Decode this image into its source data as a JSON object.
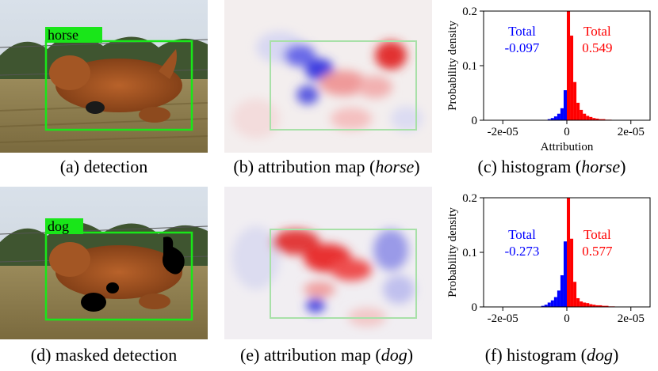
{
  "panels": [
    {
      "caption_pre": "(a) detection",
      "caption_em": "",
      "caption_post": "",
      "label": "horse"
    },
    {
      "caption_pre": "(b) attribution map (",
      "caption_em": "horse",
      "caption_post": ")"
    },
    {
      "caption_pre": "(c) histogram (",
      "caption_em": "horse",
      "caption_post": ")"
    },
    {
      "caption_pre": "(d) masked detection",
      "caption_em": "",
      "caption_post": "",
      "label": "dog"
    },
    {
      "caption_pre": "(e) attribution map (",
      "caption_em": "dog",
      "caption_post": ")"
    },
    {
      "caption_pre": "(f) histogram (",
      "caption_em": "dog",
      "caption_post": ")"
    }
  ],
  "colors": {
    "negative": "#0000ff",
    "positive": "#ff0000",
    "box": "#19e619",
    "label_bg": "#19e619"
  },
  "chart_data": [
    {
      "type": "bar",
      "ylabel": "Probability density",
      "xlabel": "Attribution",
      "xlim": [
        -2.6e-05,
        2.6e-05
      ],
      "ylim": [
        0,
        0.2
      ],
      "xticks": [
        {
          "v": -2e-05,
          "label": "-2e-05"
        },
        {
          "v": 0,
          "label": "0"
        },
        {
          "v": 2e-05,
          "label": "2e-05"
        }
      ],
      "yticks": [
        {
          "v": 0,
          "label": "0"
        },
        {
          "v": 0.1,
          "label": "0.1"
        },
        {
          "v": 0.2,
          "label": "0.2"
        }
      ],
      "bin_width": 1e-06,
      "bins": [
        {
          "x": -6e-06,
          "h": 0.002,
          "c": "neg"
        },
        {
          "x": -5e-06,
          "h": 0.004,
          "c": "neg"
        },
        {
          "x": -4e-06,
          "h": 0.007,
          "c": "neg"
        },
        {
          "x": -3e-06,
          "h": 0.012,
          "c": "neg"
        },
        {
          "x": -2e-06,
          "h": 0.022,
          "c": "neg"
        },
        {
          "x": -1e-06,
          "h": 0.055,
          "c": "neg"
        },
        {
          "x": 0,
          "h": 0.2,
          "c": "pos"
        },
        {
          "x": 1e-06,
          "h": 0.155,
          "c": "pos"
        },
        {
          "x": 2e-06,
          "h": 0.07,
          "c": "pos"
        },
        {
          "x": 3e-06,
          "h": 0.032,
          "c": "pos"
        },
        {
          "x": 4e-06,
          "h": 0.019,
          "c": "pos"
        },
        {
          "x": 5e-06,
          "h": 0.012,
          "c": "pos"
        },
        {
          "x": 6e-06,
          "h": 0.008,
          "c": "pos"
        },
        {
          "x": 7e-06,
          "h": 0.006,
          "c": "pos"
        },
        {
          "x": 8e-06,
          "h": 0.004,
          "c": "pos"
        },
        {
          "x": 9e-06,
          "h": 0.003,
          "c": "pos"
        },
        {
          "x": 1e-05,
          "h": 0.002,
          "c": "pos"
        },
        {
          "x": 1.1e-05,
          "h": 0.002,
          "c": "pos"
        },
        {
          "x": 1.2e-05,
          "h": 0.001,
          "c": "pos"
        },
        {
          "x": 1.3e-05,
          "h": 0.001,
          "c": "pos"
        }
      ],
      "annotations": [
        {
          "label": "Total",
          "value": "-0.097",
          "color": "#0000ff",
          "ax": -1.4e-05,
          "ay": 0.155
        },
        {
          "label": "Total",
          "value": "0.549",
          "color": "#ff0000",
          "ax": 9.5e-06,
          "ay": 0.155
        }
      ]
    },
    {
      "type": "bar",
      "ylabel": "Probability density",
      "xlabel": "",
      "xlim": [
        -2.6e-05,
        2.6e-05
      ],
      "ylim": [
        0,
        0.2
      ],
      "xticks": [
        {
          "v": -2e-05,
          "label": "-2e-05"
        },
        {
          "v": 0,
          "label": "0"
        },
        {
          "v": 2e-05,
          "label": "2e-05"
        }
      ],
      "yticks": [
        {
          "v": 0,
          "label": "0"
        },
        {
          "v": 0.1,
          "label": "0.1"
        },
        {
          "v": 0.2,
          "label": "0.2"
        }
      ],
      "bin_width": 1e-06,
      "bins": [
        {
          "x": -8e-06,
          "h": 0.002,
          "c": "neg"
        },
        {
          "x": -7e-06,
          "h": 0.004,
          "c": "neg"
        },
        {
          "x": -6e-06,
          "h": 0.008,
          "c": "neg"
        },
        {
          "x": -5e-06,
          "h": 0.012,
          "c": "neg"
        },
        {
          "x": -4e-06,
          "h": 0.018,
          "c": "neg"
        },
        {
          "x": -3e-06,
          "h": 0.03,
          "c": "neg"
        },
        {
          "x": -2e-06,
          "h": 0.058,
          "c": "neg"
        },
        {
          "x": -1e-06,
          "h": 0.12,
          "c": "neg"
        },
        {
          "x": 0,
          "h": 0.2,
          "c": "pos"
        },
        {
          "x": 1e-06,
          "h": 0.125,
          "c": "pos"
        },
        {
          "x": 2e-06,
          "h": 0.046,
          "c": "pos"
        },
        {
          "x": 3e-06,
          "h": 0.016,
          "c": "pos"
        },
        {
          "x": 4e-06,
          "h": 0.01,
          "c": "pos"
        },
        {
          "x": 5e-06,
          "h": 0.008,
          "c": "pos"
        },
        {
          "x": 6e-06,
          "h": 0.007,
          "c": "pos"
        },
        {
          "x": 7e-06,
          "h": 0.005,
          "c": "pos"
        },
        {
          "x": 8e-06,
          "h": 0.004,
          "c": "pos"
        },
        {
          "x": 9e-06,
          "h": 0.003,
          "c": "pos"
        },
        {
          "x": 1e-05,
          "h": 0.003,
          "c": "pos"
        },
        {
          "x": 1.1e-05,
          "h": 0.002,
          "c": "pos"
        },
        {
          "x": 1.2e-05,
          "h": 0.002,
          "c": "pos"
        },
        {
          "x": 1.3e-05,
          "h": 0.001,
          "c": "pos"
        },
        {
          "x": 1.4e-05,
          "h": 0.001,
          "c": "pos"
        }
      ],
      "annotations": [
        {
          "label": "Total",
          "value": "-0.273",
          "color": "#0000ff",
          "ax": -1.4e-05,
          "ay": 0.125
        },
        {
          "label": "Total",
          "value": "0.577",
          "color": "#ff0000",
          "ax": 9.5e-06,
          "ay": 0.125
        }
      ]
    }
  ]
}
